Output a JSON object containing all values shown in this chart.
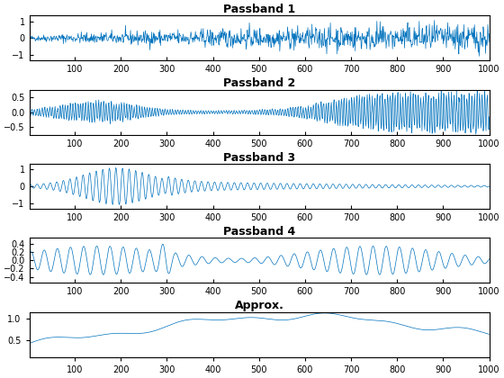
{
  "title1": "Passband 1",
  "title2": "Passband 2",
  "title3": "Passband 3",
  "title4": "Passband 4",
  "title5": "Approx.",
  "line_color": "#0072bd",
  "n_samples": 1000,
  "xlim": [
    1,
    1000
  ],
  "bg_color": "#ffffff",
  "title_fontsize": 9,
  "tick_fontsize": 7,
  "yticks1": [
    -1,
    0,
    1
  ],
  "ylim1": [
    -1.35,
    1.35
  ],
  "yticks2": [
    -0.5,
    0,
    0.5
  ],
  "ylim2": [
    -0.75,
    0.75
  ],
  "yticks3": [
    -1,
    0,
    1
  ],
  "ylim3": [
    -1.35,
    1.35
  ],
  "yticks4": [
    -0.4,
    -0.2,
    0,
    0.2,
    0.4
  ],
  "ylim4": [
    -0.55,
    0.55
  ],
  "yticks5": [
    0.5,
    1
  ],
  "ylim5": [
    0.1,
    1.15
  ]
}
